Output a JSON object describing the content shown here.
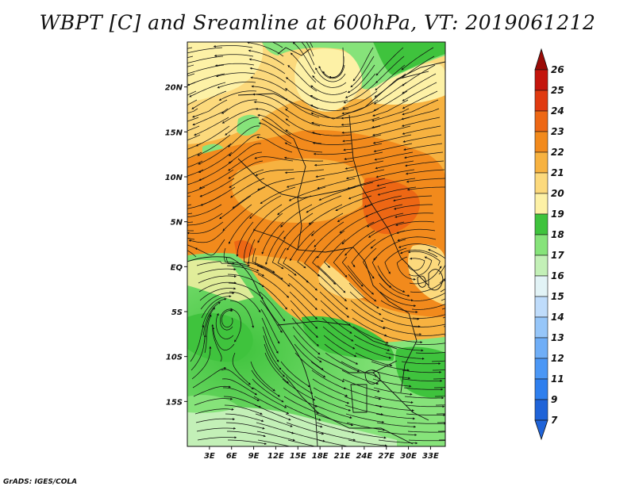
{
  "title": "WBPT [C] and Sreamline at 600hPa, VT: 2019061212",
  "footer": "GrADS: IGES/COLA",
  "map": {
    "lon_range": [
      0,
      35
    ],
    "lat_range": [
      -20,
      25
    ],
    "x_ticks": [
      {
        "value": 3,
        "label": "3E"
      },
      {
        "value": 6,
        "label": "6E"
      },
      {
        "value": 9,
        "label": "9E"
      },
      {
        "value": 12,
        "label": "12E"
      },
      {
        "value": 15,
        "label": "15E"
      },
      {
        "value": 18,
        "label": "18E"
      },
      {
        "value": 21,
        "label": "21E"
      },
      {
        "value": 24,
        "label": "24E"
      },
      {
        "value": 27,
        "label": "27E"
      },
      {
        "value": 30,
        "label": "30E"
      },
      {
        "value": 33,
        "label": "33E"
      }
    ],
    "y_ticks": [
      {
        "value": 20,
        "label": "20N"
      },
      {
        "value": 15,
        "label": "15N"
      },
      {
        "value": 10,
        "label": "10N"
      },
      {
        "value": 5,
        "label": "5N"
      },
      {
        "value": 0,
        "label": "EQ"
      },
      {
        "value": -5,
        "label": "5S"
      },
      {
        "value": -10,
        "label": "10S"
      },
      {
        "value": -15,
        "label": "15S"
      }
    ]
  },
  "colorbar": {
    "levels": [
      "7",
      "9",
      "11",
      "12",
      "13",
      "14",
      "15",
      "16",
      "17",
      "18",
      "19",
      "20",
      "21",
      "22",
      "23",
      "24",
      "25",
      "26"
    ],
    "colors": [
      "#1f63d8",
      "#2e7fee",
      "#4b97f5",
      "#6faef7",
      "#96c6f9",
      "#bfdcfb",
      "#e2f3f6",
      "#c3f0b7",
      "#86e37a",
      "#3fc33d",
      "#fdf1a6",
      "#fcd97c",
      "#f7b240",
      "#f28a1c",
      "#ed6714",
      "#e03a10",
      "#c4150c",
      "#9a0b07"
    ]
  }
}
